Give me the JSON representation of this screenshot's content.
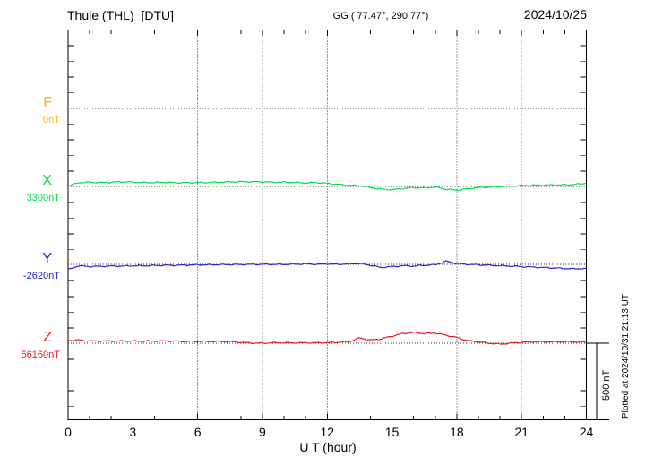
{
  "header": {
    "title": "Thule (THL)  [DTU]",
    "coordinates": "GG ( 77.47°, 290.77°)",
    "date": "2024/10/25"
  },
  "channels": [
    {
      "id": "F",
      "label": "F",
      "offset_label": "0nT"
    },
    {
      "id": "X",
      "label": "X",
      "offset_label": "3300nT"
    },
    {
      "id": "Y",
      "label": "Y",
      "offset_label": "-2620nT"
    },
    {
      "id": "Z",
      "label": "Z",
      "offset_label": "56160nT"
    }
  ],
  "xaxis": {
    "title": "U T (hour)",
    "tick_labels": [
      "0",
      "3",
      "6",
      "9",
      "12",
      "15",
      "18",
      "21",
      "24"
    ],
    "range_hours": [
      0,
      24
    ]
  },
  "scale_bar": {
    "label": "500 nT",
    "span_nT": 500
  },
  "plotted_note": "Plotted at 2024/10/31 21:13 UT",
  "colors": {
    "F": "#FFB300",
    "X": "#00DD44",
    "Y": "#2020D0",
    "Z": "#E81818",
    "grid": "#333333",
    "frame": "#000000",
    "tick_alt": "#6e6e6e"
  },
  "chart_data": {
    "type": "line",
    "title": "Thule (THL) [DTU] magnetogram, 2024/10/25",
    "xlabel": "U T (hour)",
    "x_range": [
      0,
      24
    ],
    "x_hours_step": 0.5,
    "row_spacing_nT": 500,
    "grid": "dotted vertical gridlines every 3 hours; dotted horizontal baseline per channel",
    "legend_position": "left margin channel labels",
    "series": [
      {
        "name": "F",
        "baseline_nT": 0,
        "color": "#FFB300",
        "values": []
      },
      {
        "name": "X",
        "baseline_nT": 3300,
        "color": "#00DD44",
        "values": [
          3302,
          3324,
          3327,
          3324,
          3326,
          3330,
          3327,
          3325,
          3325,
          3326,
          3324,
          3323,
          3325,
          3325,
          3327,
          3329,
          3330,
          3330,
          3329,
          3327,
          3327,
          3325,
          3322,
          3325,
          3319,
          3313,
          3308,
          3305,
          3293,
          3282,
          3279,
          3287,
          3293,
          3290,
          3296,
          3282,
          3276,
          3285,
          3293,
          3296,
          3299,
          3302,
          3305,
          3308,
          3308,
          3310,
          3310,
          3313,
          3320
        ]
      },
      {
        "name": "Y",
        "baseline_nT": -2620,
        "color": "#2020D0",
        "values": [
          -2654,
          -2629,
          -2634,
          -2632,
          -2631,
          -2631,
          -2629,
          -2629,
          -2627,
          -2626,
          -2626,
          -2625,
          -2623,
          -2623,
          -2622,
          -2621,
          -2621,
          -2620,
          -2620,
          -2620,
          -2620,
          -2619,
          -2617,
          -2620,
          -2617,
          -2620,
          -2617,
          -2614,
          -2626,
          -2640,
          -2634,
          -2629,
          -2631,
          -2626,
          -2623,
          -2600,
          -2614,
          -2620,
          -2623,
          -2626,
          -2629,
          -2631,
          -2634,
          -2637,
          -2640,
          -2643,
          -2646,
          -2648,
          -2646
        ]
      },
      {
        "name": "Z",
        "baseline_nT": 56160,
        "color": "#E81818",
        "values": [
          56177,
          56180,
          56174,
          56174,
          56174,
          56174,
          56174,
          56173,
          56174,
          56174,
          56173,
          56171,
          56172,
          56171,
          56171,
          56170,
          56166,
          56161,
          56160,
          56163,
          56163,
          56162,
          56163,
          56163,
          56164,
          56166,
          56169,
          56194,
          56180,
          56188,
          56205,
          56222,
          56228,
          56222,
          56225,
          56211,
          56197,
          56177,
          56169,
          56160,
          56154,
          56160,
          56166,
          56169,
          56169,
          56169,
          56169,
          56169,
          56166
        ]
      }
    ]
  }
}
